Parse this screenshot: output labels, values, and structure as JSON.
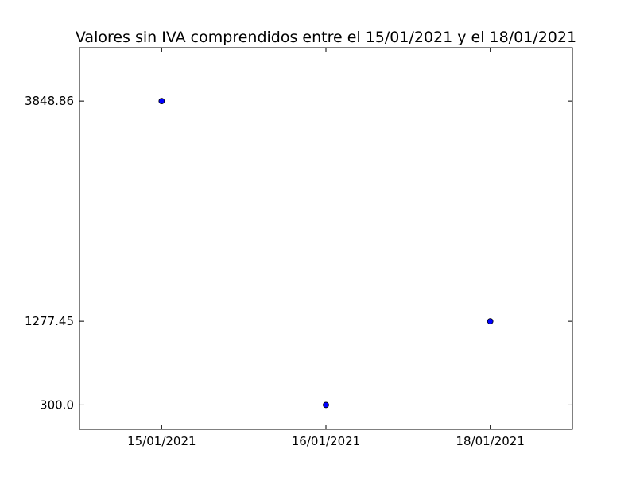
{
  "chart_data": {
    "type": "scatter",
    "title": "Valores sin IVA comprendidos entre el 15/01/2021 y el 18/01/2021",
    "xlabel": "",
    "ylabel": "",
    "categories": [
      "15/01/2021",
      "16/01/2021",
      "18/01/2021"
    ],
    "values": [
      3848.86,
      300.0,
      1277.45
    ],
    "y_ticks": [
      "300.0",
      "1277.45",
      "3848.86"
    ],
    "ylim": [
      16.14,
      4472.07
    ],
    "grid": false,
    "legend": "none",
    "marker_color": "#0000ff"
  }
}
